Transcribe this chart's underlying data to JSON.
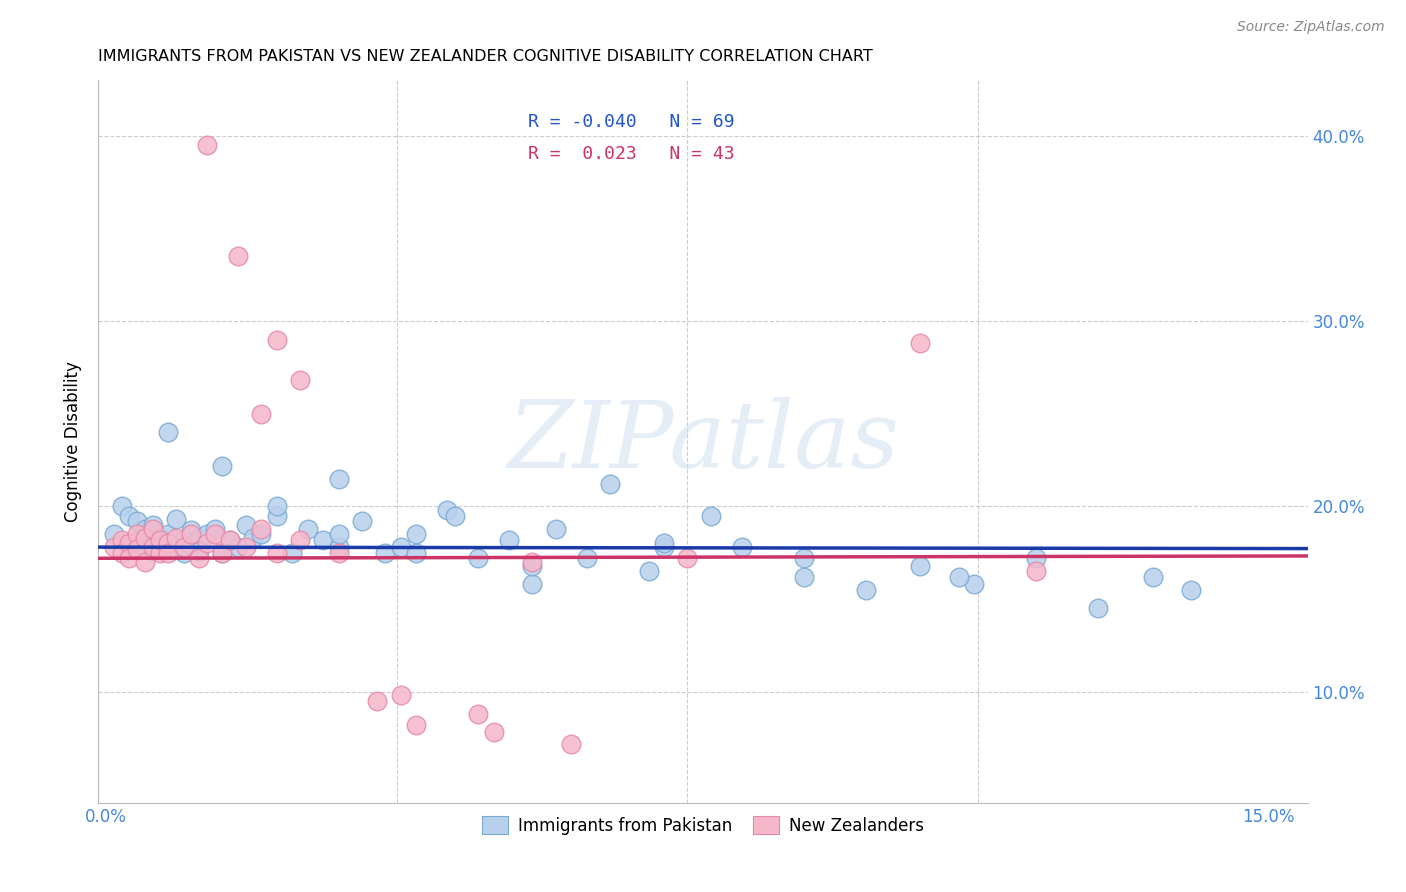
{
  "title": "IMMIGRANTS FROM PAKISTAN VS NEW ZEALANDER COGNITIVE DISABILITY CORRELATION CHART",
  "source": "Source: ZipAtlas.com",
  "ylabel": "Cognitive Disability",
  "xlim": [
    -0.001,
    0.155
  ],
  "ylim": [
    0.04,
    0.43
  ],
  "xticks": [
    0.0,
    0.0375,
    0.075,
    0.1125,
    0.15
  ],
  "xtick_labels": [
    "0.0%",
    "",
    "",
    "",
    "15.0%"
  ],
  "yticks": [
    0.1,
    0.2,
    0.3,
    0.4
  ],
  "ytick_labels": [
    "10.0%",
    "20.0%",
    "30.0%",
    "40.0%"
  ],
  "blue_face": "#b8d0ec",
  "blue_edge": "#7aaad4",
  "pink_face": "#f5b8cb",
  "pink_edge": "#e888a8",
  "blue_line_color": "#1a3aaa",
  "pink_line_color": "#cc3366",
  "watermark": "ZIPatlas",
  "legend_blue_R": "-0.040",
  "legend_blue_N": "69",
  "legend_pink_R": "0.023",
  "legend_pink_N": "43",
  "grid_color": "#cccccc",
  "tick_color": "#4488dd",
  "blue_x": [
    0.001,
    0.002,
    0.003,
    0.003,
    0.004,
    0.004,
    0.005,
    0.005,
    0.006,
    0.006,
    0.007,
    0.007,
    0.008,
    0.008,
    0.009,
    0.009,
    0.01,
    0.01,
    0.011,
    0.011,
    0.012,
    0.012,
    0.013,
    0.014,
    0.015,
    0.016,
    0.017,
    0.018,
    0.019,
    0.02,
    0.022,
    0.024,
    0.026,
    0.028,
    0.03,
    0.033,
    0.036,
    0.04,
    0.044,
    0.048,
    0.03,
    0.038,
    0.045,
    0.052,
    0.058,
    0.065,
    0.072,
    0.078,
    0.055,
    0.062,
    0.07,
    0.082,
    0.09,
    0.098,
    0.105,
    0.112,
    0.12,
    0.128,
    0.135,
    0.14,
    0.008,
    0.015,
    0.022,
    0.03,
    0.04,
    0.055,
    0.072,
    0.09,
    0.11
  ],
  "blue_y": [
    0.185,
    0.2,
    0.178,
    0.195,
    0.182,
    0.192,
    0.179,
    0.188,
    0.176,
    0.19,
    0.183,
    0.178,
    0.18,
    0.185,
    0.177,
    0.193,
    0.182,
    0.175,
    0.187,
    0.179,
    0.183,
    0.176,
    0.185,
    0.188,
    0.175,
    0.182,
    0.178,
    0.19,
    0.183,
    0.185,
    0.195,
    0.175,
    0.188,
    0.182,
    0.178,
    0.192,
    0.175,
    0.185,
    0.198,
    0.172,
    0.215,
    0.178,
    0.195,
    0.182,
    0.188,
    0.212,
    0.178,
    0.195,
    0.158,
    0.172,
    0.165,
    0.178,
    0.162,
    0.155,
    0.168,
    0.158,
    0.172,
    0.145,
    0.162,
    0.155,
    0.24,
    0.222,
    0.2,
    0.185,
    0.175,
    0.168,
    0.18,
    0.172,
    0.162
  ],
  "pink_x": [
    0.001,
    0.002,
    0.002,
    0.003,
    0.003,
    0.004,
    0.004,
    0.005,
    0.005,
    0.006,
    0.006,
    0.007,
    0.007,
    0.008,
    0.008,
    0.009,
    0.01,
    0.011,
    0.012,
    0.013,
    0.014,
    0.015,
    0.016,
    0.018,
    0.02,
    0.022,
    0.025,
    0.03,
    0.013,
    0.017,
    0.022,
    0.025,
    0.02,
    0.035,
    0.04,
    0.048,
    0.06,
    0.038,
    0.055,
    0.075,
    0.105,
    0.12,
    0.05
  ],
  "pink_y": [
    0.178,
    0.182,
    0.175,
    0.18,
    0.172,
    0.185,
    0.177,
    0.183,
    0.17,
    0.178,
    0.188,
    0.175,
    0.182,
    0.18,
    0.175,
    0.183,
    0.178,
    0.185,
    0.172,
    0.18,
    0.185,
    0.175,
    0.182,
    0.178,
    0.188,
    0.175,
    0.182,
    0.175,
    0.395,
    0.335,
    0.29,
    0.268,
    0.25,
    0.095,
    0.082,
    0.088,
    0.072,
    0.098,
    0.17,
    0.172,
    0.288,
    0.165,
    0.078
  ]
}
